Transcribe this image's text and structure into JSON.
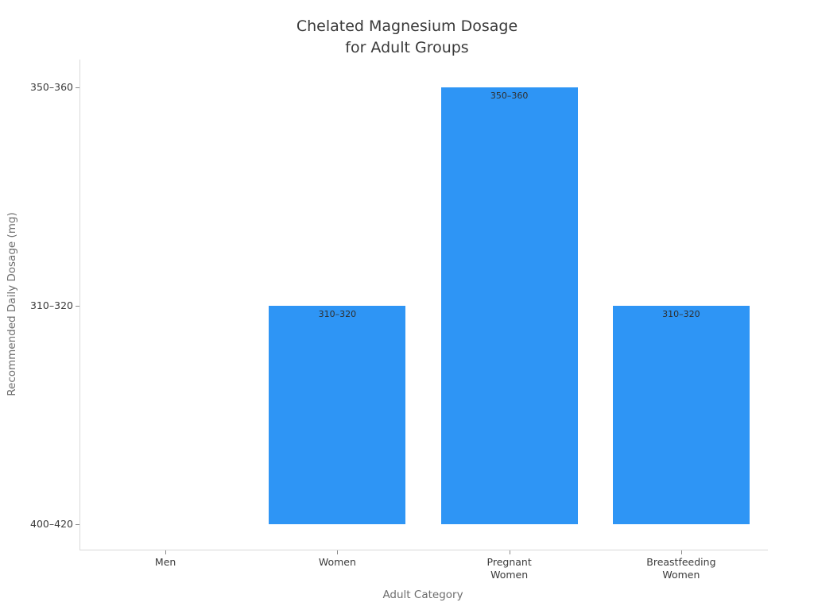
{
  "chart_data": {
    "type": "bar",
    "title": "Chelated Magnesium Dosage\nfor Adult Groups",
    "xlabel": "Adult Category",
    "ylabel": "Recommended Daily Dosage (mg)",
    "categories": [
      "Men",
      "Women",
      "Pregnant Women",
      "Breastfeeding Women"
    ],
    "category_tick_labels": [
      "Men",
      "Women",
      "Pregnant\nWomen",
      "Breastfeeding\nWomen"
    ],
    "values": [
      "400–420",
      "310–320",
      "350–360",
      "310–320"
    ],
    "bar_value_labels_shown": [
      "",
      "310–320",
      "350–360",
      "310–320"
    ],
    "y_level_order_bottom_to_top": [
      "400–420",
      "310–320",
      "350–360"
    ],
    "y_tick_labels_top_to_bottom": [
      "350–360",
      "310–320",
      "400–420"
    ],
    "bar_color": "#2e95f5",
    "background_color": "#ffffff",
    "grid": false,
    "legend": false,
    "orientation": "vertical",
    "y_axis_type": "categorical"
  }
}
